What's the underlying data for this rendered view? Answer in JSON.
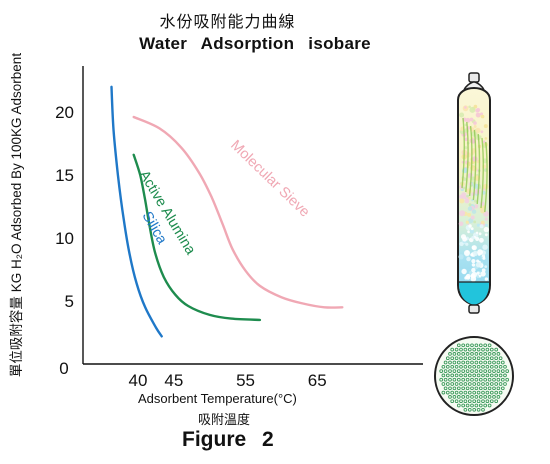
{
  "title_cn": "水份吸附能力曲線",
  "title_en": "Water   Adsorption   isobare",
  "ylabel": "KG H₂O Adsorbed By 100KG Adsorbent",
  "ylabel_cn": "單位吸附容量",
  "xlabel": "Adsorbent Temperature(°C)",
  "xlabel_cn": "吸附溫度",
  "figure_label": "Figure   2",
  "chart_data": {
    "type": "line",
    "title": "Water Adsorption isobare",
    "xlabel": "Adsorbent Temperature(°C)",
    "ylabel": "KG H2O Adsorbed By 100KG Adsorbent",
    "xlim": [
      30,
      75
    ],
    "ylim": [
      0,
      24
    ],
    "x_ticks": [
      40,
      45,
      55,
      65
    ],
    "y_ticks": [
      5,
      10,
      15,
      20
    ],
    "grid": false,
    "series": [
      {
        "name": "Silica",
        "color": "#1f78c8",
        "points": [
          [
            36.3,
            22.0
          ],
          [
            36.6,
            18.5
          ],
          [
            37.2,
            15.0
          ],
          [
            38.0,
            11.5
          ],
          [
            38.8,
            8.8
          ],
          [
            39.8,
            6.4
          ],
          [
            41.0,
            4.5
          ],
          [
            42.5,
            2.9
          ],
          [
            43.3,
            2.2
          ]
        ]
      },
      {
        "name": "Active Alumina",
        "color": "#1e8c4e",
        "points": [
          [
            39.4,
            16.6
          ],
          [
            40.3,
            15.0
          ],
          [
            41.0,
            13.0
          ],
          [
            41.6,
            11.0
          ],
          [
            42.4,
            8.8
          ],
          [
            43.6,
            6.9
          ],
          [
            45.2,
            5.5
          ],
          [
            47.0,
            4.6
          ],
          [
            50.0,
            3.9
          ],
          [
            53.0,
            3.6
          ],
          [
            57.0,
            3.5
          ]
        ]
      },
      {
        "name": "Molecular Sieve",
        "color": "#f0a8b4",
        "points": [
          [
            39.4,
            19.6
          ],
          [
            43.0,
            18.7
          ],
          [
            46.0,
            17.2
          ],
          [
            48.5,
            15.2
          ],
          [
            50.3,
            13.2
          ],
          [
            51.8,
            11.1
          ],
          [
            53.2,
            9.1
          ],
          [
            55.0,
            7.4
          ],
          [
            57.0,
            6.2
          ],
          [
            60.0,
            5.3
          ],
          [
            63.0,
            4.8
          ],
          [
            66.0,
            4.5
          ],
          [
            68.5,
            4.5
          ]
        ]
      }
    ]
  },
  "colors": {
    "axis": "#111111",
    "vessel_shell": "#222222",
    "vessel_fill_top": "#f6f3cf",
    "vessel_beads": "#9fd9ef",
    "vessel_bottom_liquid": "#1ec4dc",
    "crossection_dots": "#3b9a5a"
  },
  "icons": [
    "adsorption-vessel-icon",
    "bed-cross-section-icon"
  ]
}
